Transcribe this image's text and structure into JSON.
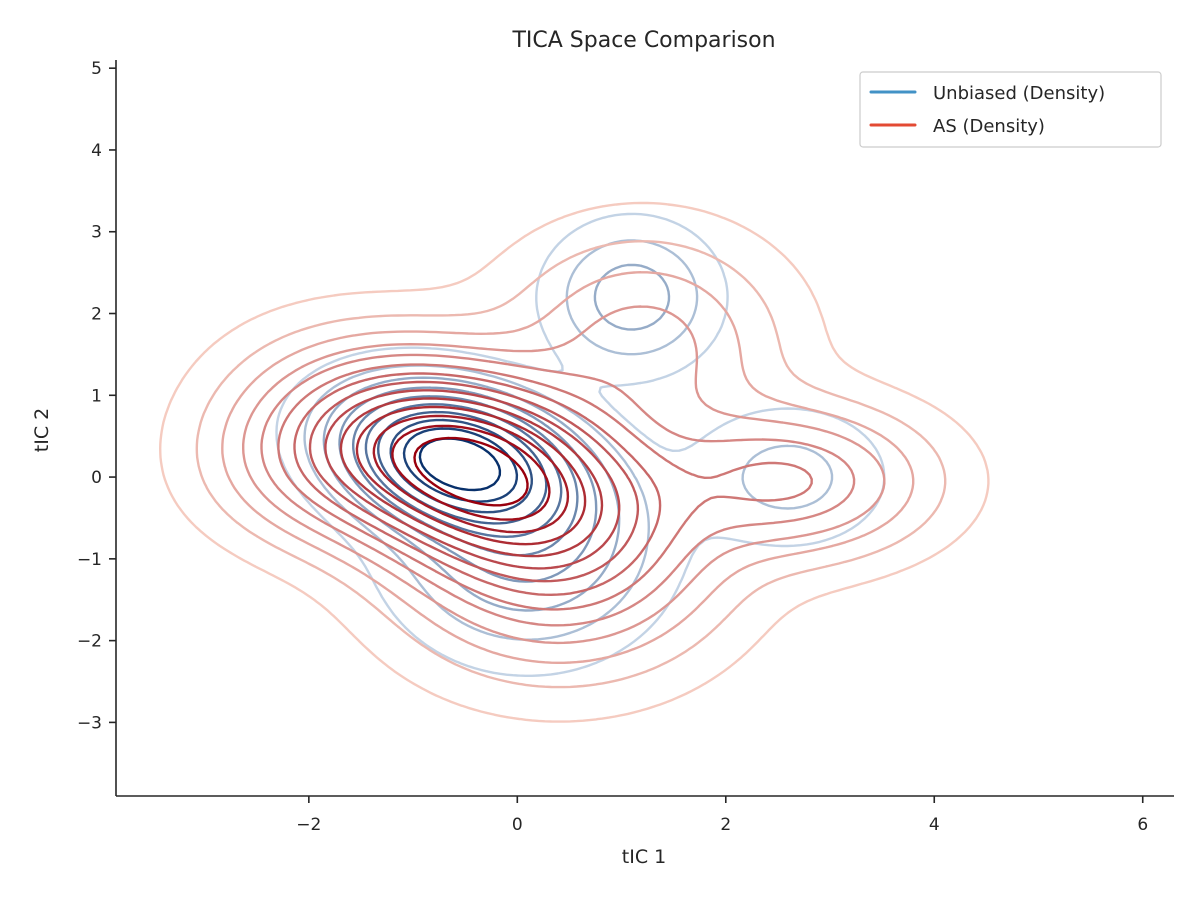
{
  "chart_data": {
    "type": "contour",
    "title": "TICA Space Comparison",
    "xlabel": "tIC 1",
    "ylabel": "tIC 2",
    "xlim": [
      -3.85,
      6.3
    ],
    "ylim": [
      -3.9,
      5.1
    ],
    "xticks": [
      -2,
      0,
      2,
      4,
      6
    ],
    "xtick_labels": [
      "−2",
      "0",
      "2",
      "4",
      "6"
    ],
    "yticks": [
      -3,
      -2,
      -1,
      0,
      1,
      2,
      3,
      4,
      5
    ],
    "ytick_labels": [
      "−3",
      "−2",
      "−1",
      "0",
      "1",
      "2",
      "3",
      "4",
      "5"
    ],
    "legend_position": "top-right",
    "grid": false,
    "series": [
      {
        "name": "Unbiased (Density)",
        "color": "#4292c6",
        "ramp": [
          "#deebf7",
          "#08306b"
        ],
        "components": [
          {
            "mx": -0.6,
            "my": 0.2,
            "sx": 0.62,
            "sy": 0.5,
            "rho": -0.25,
            "w": 0.6
          },
          {
            "mx": 0.1,
            "my": -0.8,
            "sx": 0.7,
            "sy": 0.75,
            "rho": 0.0,
            "w": 0.25
          },
          {
            "mx": 1.1,
            "my": 2.2,
            "sx": 0.45,
            "sy": 0.5,
            "rho": 0.0,
            "w": 0.08
          },
          {
            "mx": 2.6,
            "my": 0.0,
            "sx": 0.55,
            "sy": 0.5,
            "rho": 0.0,
            "w": 0.05
          }
        ],
        "levels": 10
      },
      {
        "name": "AS (Density)",
        "color": "#e34a33",
        "ramp": [
          "#fee0d2",
          "#99000d"
        ],
        "components": [
          {
            "mx": -0.5,
            "my": 0.15,
            "sx": 0.9,
            "sy": 0.72,
            "rho": -0.3,
            "w": 0.55
          },
          {
            "mx": 0.4,
            "my": -0.9,
            "sx": 0.9,
            "sy": 0.85,
            "rho": 0.0,
            "w": 0.2
          },
          {
            "mx": 2.6,
            "my": -0.05,
            "sx": 0.8,
            "sy": 0.55,
            "rho": 0.0,
            "w": 0.1
          },
          {
            "mx": 1.2,
            "my": 1.6,
            "sx": 0.8,
            "sy": 0.8,
            "rho": 0.0,
            "w": 0.09
          },
          {
            "mx": -1.8,
            "my": 0.2,
            "sx": 0.7,
            "sy": 0.6,
            "rho": 0.0,
            "w": 0.06
          }
        ],
        "levels": 14
      }
    ]
  }
}
